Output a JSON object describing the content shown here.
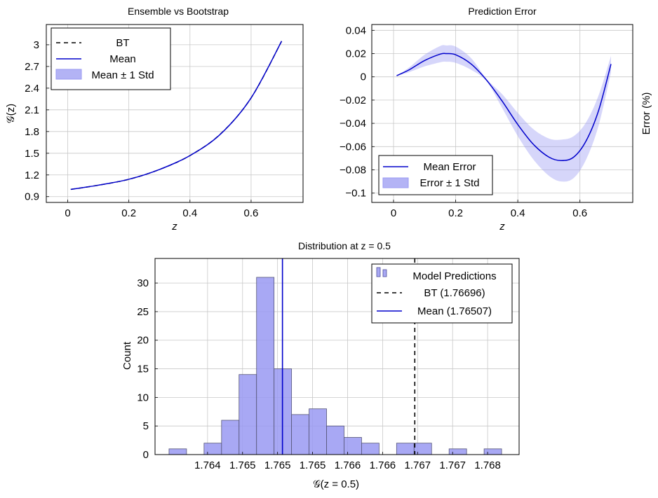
{
  "chart_data": [
    {
      "type": "line",
      "title": "Ensemble vs Bootstrap",
      "xlabel": "z",
      "ylabel": "𝒢(z)",
      "xlim": [
        -0.07,
        0.77
      ],
      "ylim": [
        0.82,
        3.28
      ],
      "xticks": [
        "0",
        "0.2",
        "0.4",
        "0.6"
      ],
      "xtick_values": [
        0,
        0.2,
        0.4,
        0.6
      ],
      "yticks": [
        "0.9",
        "1.2",
        "1.5",
        "1.8",
        "2.1",
        "2.4",
        "2.7",
        "3"
      ],
      "ytick_values": [
        0.9,
        1.2,
        1.5,
        1.8,
        2.1,
        2.4,
        2.7,
        3.0
      ],
      "grid": true,
      "legend_position": "top-left",
      "legend": [
        "BT",
        "Mean",
        "Mean ± 1 Std"
      ],
      "series": [
        {
          "name": "BT",
          "style": "dashed",
          "color": "#000000",
          "x": [
            0.01,
            0.1,
            0.2,
            0.3,
            0.4,
            0.5,
            0.6,
            0.7
          ],
          "y": [
            1.0,
            1.058,
            1.14,
            1.275,
            1.468,
            1.767,
            2.265,
            3.05
          ]
        },
        {
          "name": "Mean",
          "style": "solid",
          "color": "#0000cc",
          "x": [
            0.01,
            0.1,
            0.2,
            0.3,
            0.4,
            0.5,
            0.6,
            0.7
          ],
          "y": [
            1.0,
            1.058,
            1.14,
            1.275,
            1.468,
            1.765,
            2.265,
            3.05
          ]
        }
      ],
      "band": {
        "name": "Mean ± 1 Std",
        "color": "#9999f2",
        "x": [
          0.01,
          0.1,
          0.2,
          0.3,
          0.4,
          0.5,
          0.6,
          0.7
        ],
        "lower": [
          1.0,
          1.058,
          1.14,
          1.275,
          1.468,
          1.764,
          2.264,
          3.049
        ],
        "upper": [
          1.0,
          1.058,
          1.14,
          1.275,
          1.468,
          1.766,
          2.266,
          3.051
        ]
      }
    },
    {
      "type": "line",
      "title": "Prediction Error",
      "xlabel": "z",
      "ylabel": "Error (%)",
      "xlim": [
        -0.07,
        0.77
      ],
      "ylim": [
        -0.108,
        0.045
      ],
      "xticks": [
        "0",
        "0.2",
        "0.4",
        "0.6"
      ],
      "xtick_values": [
        0,
        0.2,
        0.4,
        0.6
      ],
      "yticks": [
        "0.04",
        "0.02",
        "0",
        "−0.02",
        "−0.04",
        "−0.06",
        "−0.08",
        "−0.1"
      ],
      "ytick_values": [
        0.04,
        0.02,
        0,
        -0.02,
        -0.04,
        -0.06,
        -0.08,
        -0.1
      ],
      "grid": true,
      "legend_position": "bottom-left",
      "legend": [
        "Mean Error",
        "Error ± 1 Std"
      ],
      "series": [
        {
          "name": "Mean Error",
          "style": "solid",
          "color": "#0000cc",
          "x": [
            0.01,
            0.05,
            0.1,
            0.15,
            0.17,
            0.2,
            0.25,
            0.3,
            0.35,
            0.4,
            0.45,
            0.5,
            0.54,
            0.58,
            0.62,
            0.66,
            0.7
          ],
          "y": [
            0.001,
            0.006,
            0.014,
            0.0195,
            0.02,
            0.019,
            0.011,
            -0.003,
            -0.021,
            -0.041,
            -0.058,
            -0.069,
            -0.072,
            -0.069,
            -0.055,
            -0.029,
            0.011
          ]
        }
      ],
      "band": {
        "name": "Error ± 1 Std",
        "color": "#9999f2",
        "x": [
          0.01,
          0.05,
          0.1,
          0.15,
          0.17,
          0.2,
          0.25,
          0.3,
          0.35,
          0.4,
          0.45,
          0.5,
          0.54,
          0.58,
          0.62,
          0.66,
          0.7
        ],
        "lower": [
          0.001,
          0.004,
          0.009,
          0.0125,
          0.013,
          0.012,
          0.006,
          -0.004,
          -0.027,
          -0.051,
          -0.071,
          -0.085,
          -0.09,
          -0.087,
          -0.071,
          -0.042,
          0.004
        ],
        "upper": [
          0.001,
          0.008,
          0.019,
          0.0265,
          0.027,
          0.026,
          0.016,
          -0.002,
          -0.015,
          -0.031,
          -0.045,
          -0.053,
          -0.054,
          -0.051,
          -0.039,
          -0.016,
          0.018
        ]
      }
    },
    {
      "type": "bar",
      "title": "Distribution at z = 0.5",
      "xlabel": "𝒢(z = 0.5)",
      "ylabel": "Count",
      "xlim": [
        1.76325,
        1.76845
      ],
      "ylim": [
        0,
        34.3
      ],
      "xticks": [
        "1.764",
        "1.765",
        "1.765",
        "1.765",
        "1.766",
        "1.766",
        "1.767",
        "1.767",
        "1.768"
      ],
      "xtick_values": [
        1.764,
        1.7645,
        1.765,
        1.7655,
        1.766,
        1.7665,
        1.767,
        1.7675,
        1.768
      ],
      "yticks": [
        "0",
        "5",
        "10",
        "15",
        "20",
        "25",
        "30"
      ],
      "ytick_values": [
        0,
        5,
        10,
        15,
        20,
        25,
        30
      ],
      "grid": true,
      "legend_position": "top-right",
      "legend": [
        "Model Predictions",
        "BT (1.76696)",
        "Mean (1.76507)"
      ],
      "bin_start": 1.76345,
      "bin_width": 0.00025,
      "counts": [
        1,
        0,
        2,
        6,
        14,
        31,
        15,
        7,
        8,
        5,
        3,
        2,
        0,
        2,
        2,
        0,
        1,
        0,
        1
      ],
      "bt_value": 1.76696,
      "mean_value": 1.76507,
      "bar_color": "#9999f2"
    }
  ]
}
